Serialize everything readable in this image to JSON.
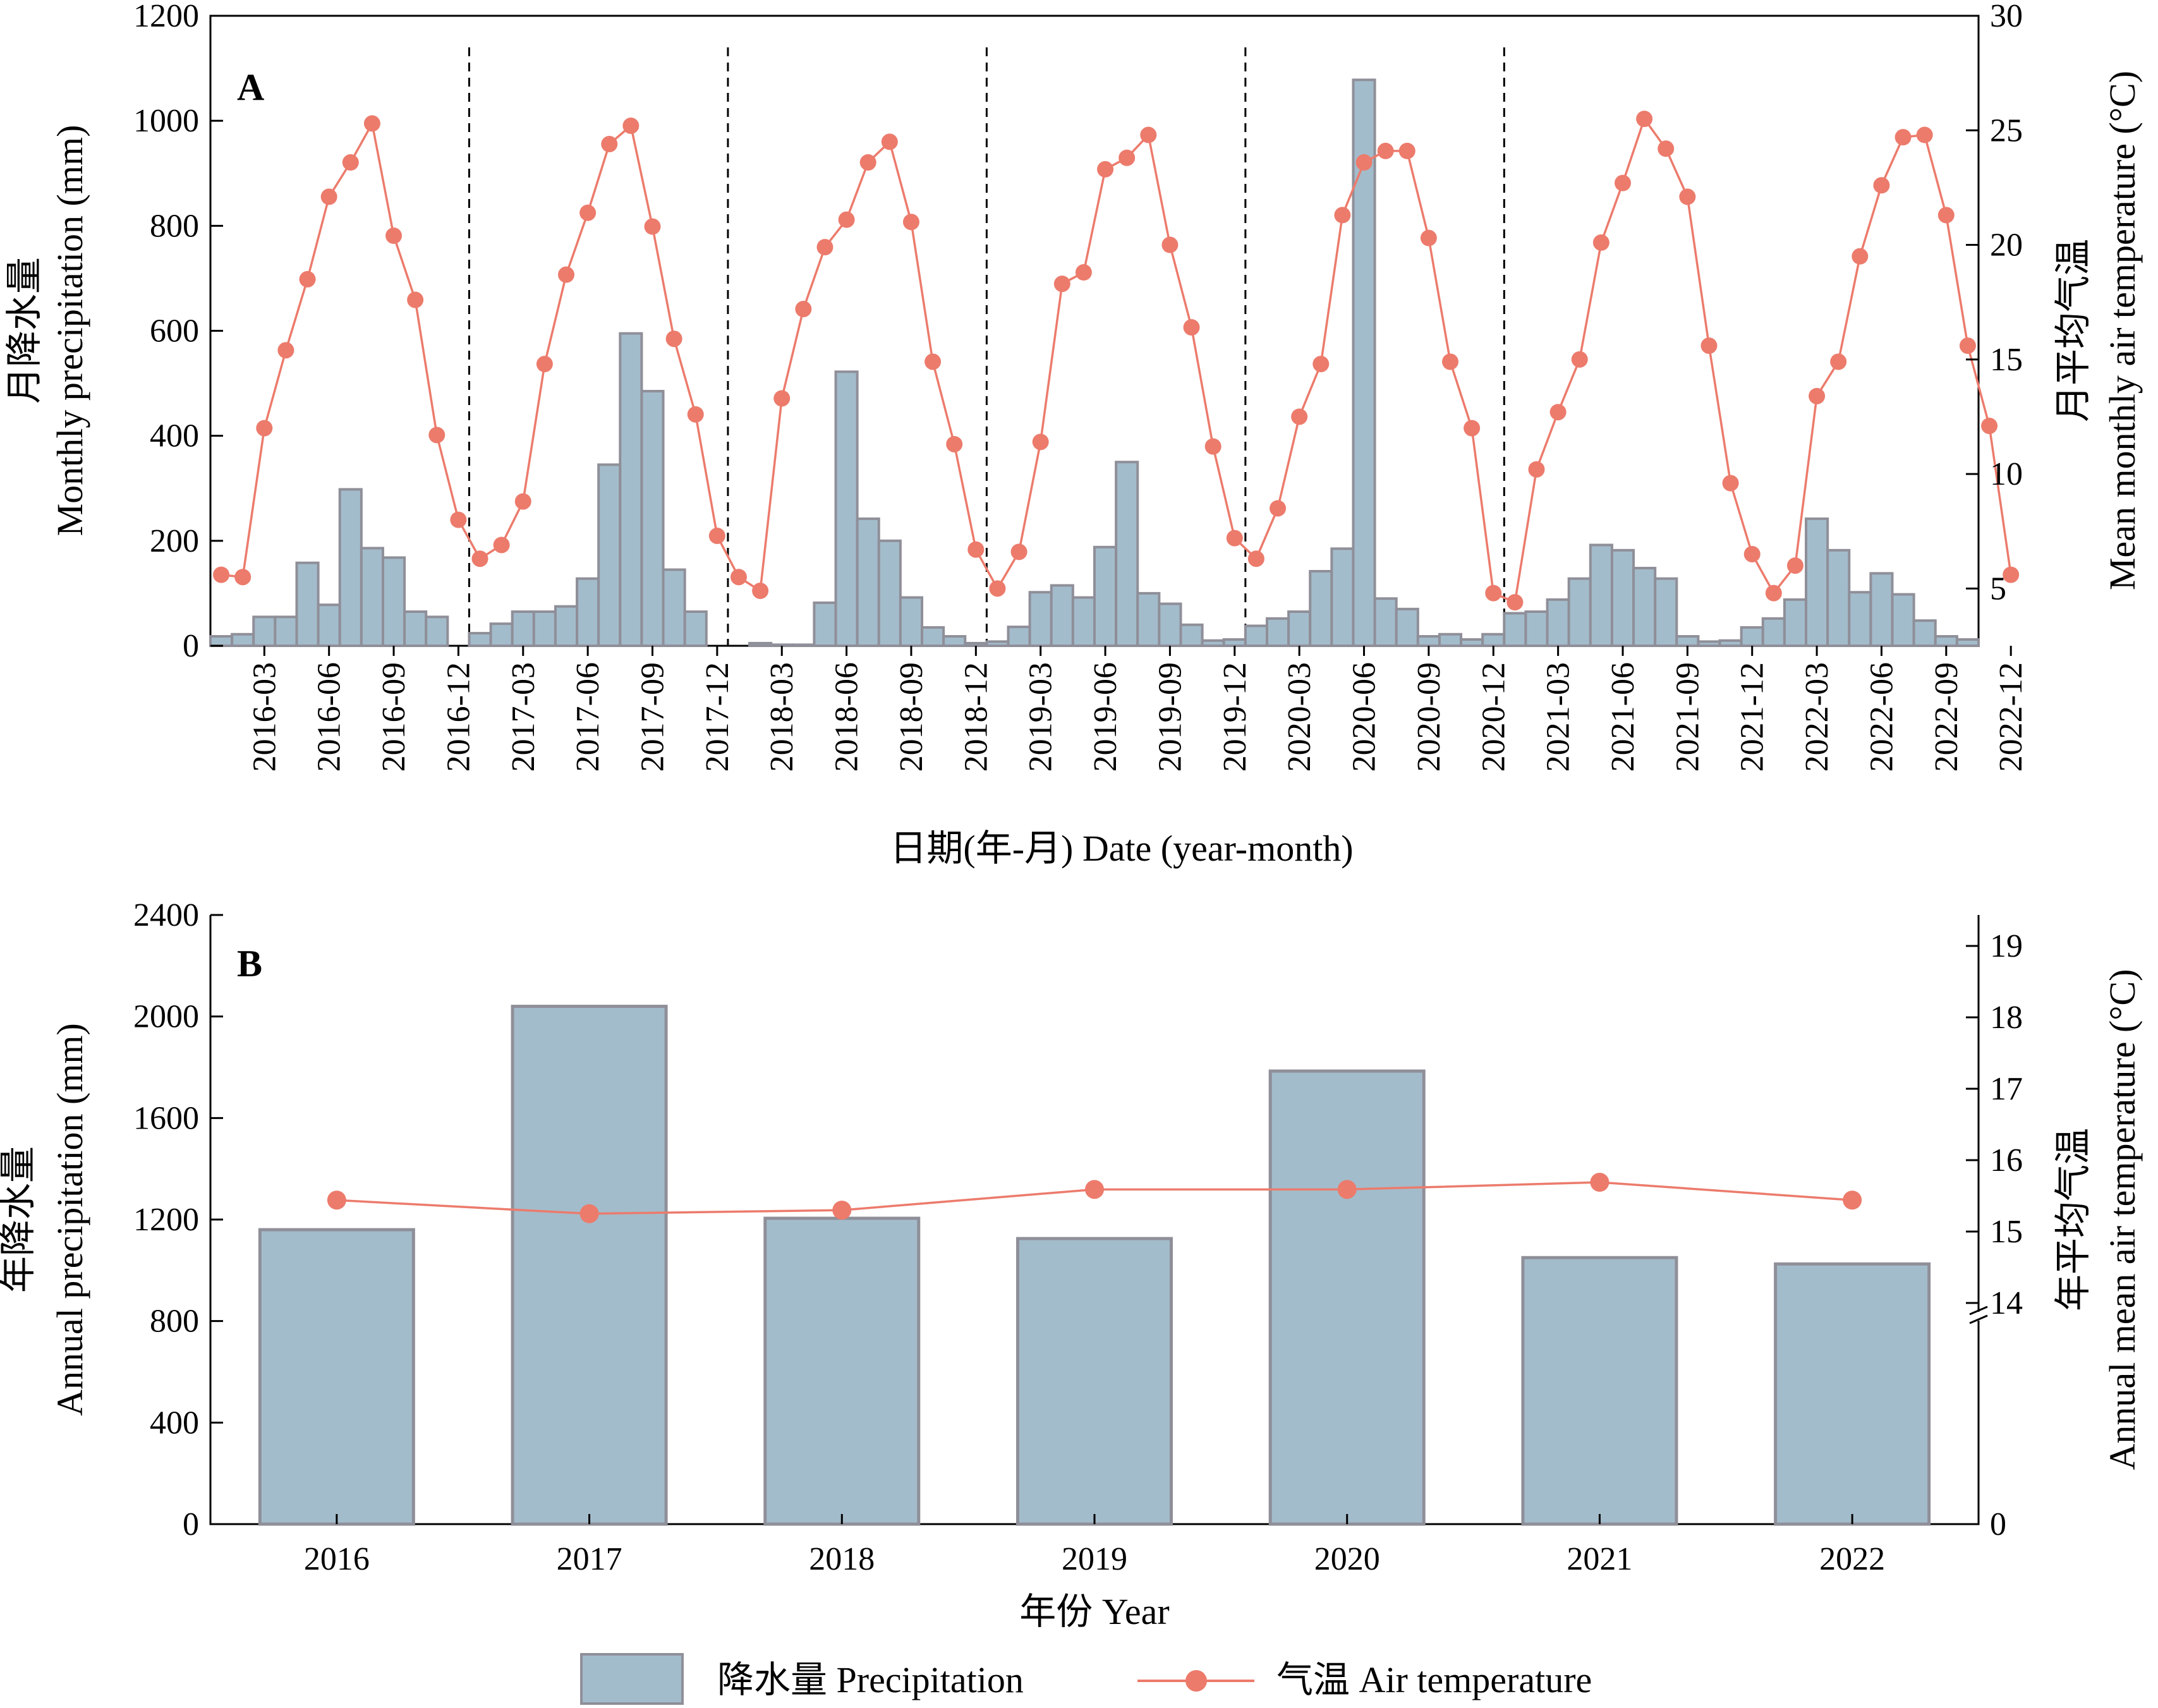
{
  "chart_data": [
    {
      "panel": "A",
      "type": "bar+line",
      "xlabel": "日期(年-月) Date (year-month)",
      "ylabel_cn": "月降水量",
      "ylabel_en": "Monthly precipitation (mm)",
      "y2label_cn": "月平均气温",
      "y2label_en": "Mean monthly air temperature (°C)",
      "ylim": [
        0,
        1200
      ],
      "yticks": [
        0,
        200,
        400,
        600,
        800,
        1000,
        1200
      ],
      "y2lim": [
        2.5,
        30
      ],
      "y2ticks": [
        5,
        10,
        15,
        20,
        25,
        30
      ],
      "xtick_labels": [
        "2016-03",
        "2016-06",
        "2016-09",
        "2016-12",
        "2017-03",
        "2017-06",
        "2017-09",
        "2017-12",
        "2018-03",
        "2018-06",
        "2018-09",
        "2018-12",
        "2019-03",
        "2019-06",
        "2019-09",
        "2019-12",
        "2020-03",
        "2020-06",
        "2020-09",
        "2020-12",
        "2021-03",
        "2021-06",
        "2021-09",
        "2021-12",
        "2022-03",
        "2022-06",
        "2022-09",
        "2022-12"
      ],
      "year_separators_after": [
        "2016-12",
        "2017-12",
        "2018-12",
        "2019-12",
        "2020-12"
      ],
      "precipitation_mm": [
        18,
        22,
        55,
        55,
        158,
        78,
        298,
        186,
        168,
        65,
        55,
        0,
        24,
        42,
        65,
        65,
        75,
        128,
        345,
        595,
        485,
        145,
        65,
        0,
        0,
        5,
        2,
        2,
        82,
        522,
        242,
        200,
        92,
        35,
        18,
        5,
        8,
        36,
        102,
        115,
        92,
        188,
        350,
        100,
        80,
        40,
        10,
        12,
        38,
        52,
        65,
        142,
        185,
        1078,
        90,
        70,
        18,
        22,
        12,
        22,
        62,
        65,
        88,
        128,
        192,
        182,
        148,
        128,
        18,
        8,
        10,
        35,
        52,
        88,
        242,
        182,
        102,
        138,
        98,
        48,
        18,
        12
      ],
      "temperature_c": [
        5.6,
        5.5,
        12.0,
        15.4,
        18.5,
        22.1,
        23.6,
        25.3,
        20.4,
        17.6,
        11.7,
        8.0,
        6.3,
        6.9,
        8.8,
        14.8,
        18.7,
        21.4,
        24.4,
        25.2,
        20.8,
        15.9,
        12.6,
        7.3,
        5.5,
        4.9,
        13.3,
        17.2,
        19.9,
        21.1,
        23.6,
        24.5,
        21.0,
        14.9,
        11.3,
        6.7,
        5.0,
        6.6,
        11.4,
        18.3,
        18.8,
        23.3,
        23.8,
        24.8,
        20.0,
        16.4,
        11.2,
        7.2,
        6.3,
        8.5,
        12.5,
        14.8,
        21.3,
        23.6,
        24.1,
        24.1,
        20.3,
        14.9,
        12.0,
        4.8,
        4.4,
        10.2,
        12.7,
        15.0,
        20.1,
        22.7,
        25.5,
        24.2,
        22.1,
        15.6,
        9.6,
        6.5,
        4.8,
        6.0,
        13.4,
        14.9,
        19.5,
        22.6,
        24.7,
        24.8,
        21.3,
        15.6,
        12.1,
        5.6
      ],
      "series": [
        {
          "name": "降水量 Precipitation",
          "axis": "left",
          "kind": "bar"
        },
        {
          "name": "气温 Air temperature",
          "axis": "right",
          "kind": "line+marker"
        }
      ]
    },
    {
      "panel": "B",
      "type": "bar+line",
      "xlabel": "年份 Year",
      "ylabel_cn": "年降水量",
      "ylabel_en": "Annual precipitation (mm)",
      "y2label_cn": "年平均气温",
      "y2label_en": "Annual mean air temperature (°C)",
      "categories": [
        "2016",
        "2017",
        "2018",
        "2019",
        "2020",
        "2021",
        "2022"
      ],
      "precipitation_mm": [
        1160,
        2040,
        1205,
        1125,
        1785,
        1050,
        1025
      ],
      "temperature_c": [
        15.44,
        15.25,
        15.3,
        15.59,
        15.59,
        15.69,
        15.44
      ],
      "ylim": [
        0,
        2400
      ],
      "yticks": [
        0,
        400,
        800,
        1200,
        1600,
        2000,
        2400
      ],
      "y2ticks": [
        0,
        14,
        15,
        16,
        17,
        18,
        19
      ],
      "y2_axis_break": "between 0 and 14",
      "series": [
        {
          "name": "降水量 Precipitation",
          "axis": "left",
          "kind": "bar"
        },
        {
          "name": "气温 Air temperature",
          "axis": "right",
          "kind": "line+marker"
        }
      ]
    }
  ],
  "legend": {
    "placement": "bottom-center",
    "precip_label": "降水量 Precipitation",
    "temp_label": "气温 Air temperature"
  },
  "colors": {
    "bar_fill": "#a3bccb",
    "bar_edge": "#8f8f99",
    "line": "#ec7b6c",
    "marker": "#ec7b6c",
    "axis": "#000000"
  }
}
